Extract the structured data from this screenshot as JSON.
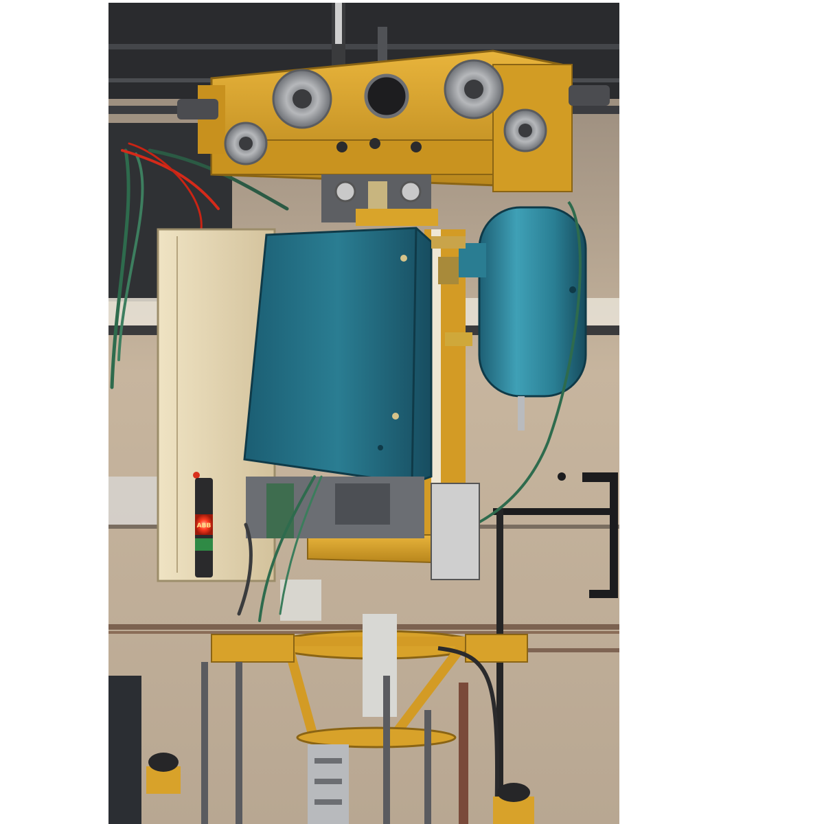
{
  "image": {
    "subject": "overhead-machine-photo",
    "palette": {
      "wall": "#c9b8a2",
      "roof": "#2a2b2e",
      "yellow": "#d8a22a",
      "teal": "#1f6f85",
      "cream": "#e6d9b8",
      "steel": "#8a8d92",
      "red_light": "#ff3b1f",
      "green_light": "#2f8a45"
    },
    "indicator_text": "ABB"
  }
}
